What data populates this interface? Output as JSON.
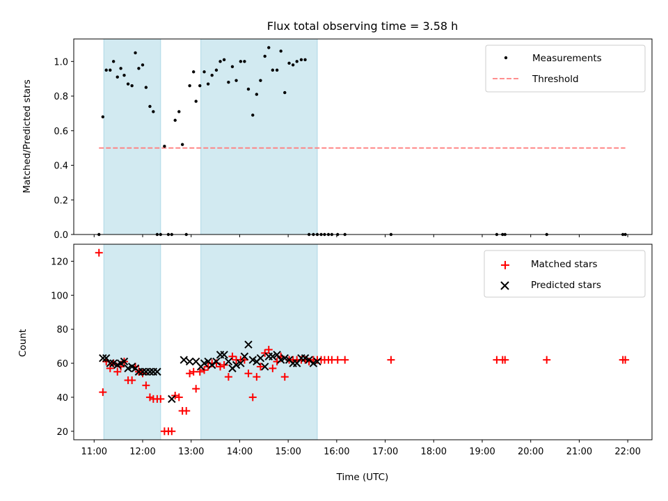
{
  "chart_data": [
    {
      "type": "scatter",
      "title": "Flux total observing time = 3.58 h",
      "ylabel": "Matched/Predicted stars",
      "xlabel": "",
      "xlim": [
        10.58,
        22.5
      ],
      "ylim": [
        0,
        1.13
      ],
      "yticks": [
        0.0,
        0.2,
        0.4,
        0.6,
        0.8,
        1.0
      ],
      "ytick_labels": [
        "0.0",
        "0.2",
        "0.4",
        "0.6",
        "0.8",
        "1.0"
      ],
      "x_axis": "time (decimal hours UTC)",
      "xticks": [
        11,
        12,
        13,
        14,
        15,
        16,
        17,
        18,
        19,
        20,
        21,
        22
      ],
      "show_xtick_labels": false,
      "shaded_intervals": [
        [
          11.2,
          12.37
        ],
        [
          13.2,
          15.6
        ]
      ],
      "shade_color": "#add8e6",
      "grid": false,
      "legend_position": "top-right",
      "legend": [
        {
          "label": "Measurements",
          "marker": "dot",
          "color": "#000000"
        },
        {
          "label": "Threshold",
          "marker": "dashed-line",
          "color": "#ff7f7f"
        }
      ],
      "threshold": {
        "y": 0.5,
        "x_start": 11.1,
        "x_end": 21.95,
        "color": "#ff7f7f"
      },
      "series": [
        {
          "name": "Measurements",
          "color": "#000000",
          "x": [
            11.1,
            11.18,
            11.25,
            11.33,
            11.4,
            11.48,
            11.55,
            11.62,
            11.7,
            11.78,
            11.85,
            11.92,
            12.0,
            12.07,
            12.15,
            12.22,
            12.3,
            12.37,
            12.45,
            12.53,
            12.6,
            12.67,
            12.75,
            12.82,
            12.9,
            12.97,
            13.05,
            13.1,
            13.18,
            13.27,
            13.35,
            13.43,
            13.52,
            13.6,
            13.68,
            13.77,
            13.85,
            13.93,
            14.02,
            14.1,
            14.18,
            14.27,
            14.35,
            14.43,
            14.52,
            14.6,
            14.68,
            14.77,
            14.85,
            14.93,
            15.02,
            15.1,
            15.18,
            15.27,
            15.35,
            15.43,
            15.52,
            15.6,
            15.68,
            15.75,
            15.83,
            15.9,
            16.02,
            16.17,
            17.12,
            19.3,
            19.42,
            19.47,
            20.33,
            21.9,
            21.95
          ],
          "y": [
            0.0,
            0.68,
            0.95,
            0.95,
            1.0,
            0.91,
            0.96,
            0.92,
            0.87,
            0.86,
            1.05,
            0.96,
            0.98,
            0.85,
            0.74,
            0.71,
            0.0,
            0.0,
            0.51,
            0.0,
            0.0,
            0.66,
            0.71,
            0.52,
            0.0,
            0.86,
            0.94,
            0.77,
            0.86,
            0.94,
            0.87,
            0.92,
            0.95,
            1.0,
            1.01,
            0.88,
            0.97,
            0.89,
            1.0,
            1.0,
            0.84,
            0.69,
            0.81,
            0.89,
            1.03,
            1.08,
            0.95,
            0.95,
            1.06,
            0.82,
            0.99,
            0.98,
            1.0,
            1.01,
            1.01,
            0.0,
            0.0,
            0.0,
            0.0,
            0.0,
            0.0,
            0.0,
            0.0,
            0.0,
            0.0,
            0.0,
            0.0,
            0.0,
            0.0,
            0.0,
            0.0
          ]
        }
      ]
    },
    {
      "type": "scatter",
      "title": "",
      "ylabel": "Count",
      "xlabel": "Time (UTC)",
      "xlim": [
        10.58,
        22.5
      ],
      "ylim": [
        15,
        130
      ],
      "yticks": [
        20,
        40,
        60,
        80,
        100,
        120
      ],
      "ytick_labels": [
        "20",
        "40",
        "60",
        "80",
        "100",
        "120"
      ],
      "xticks": [
        11,
        12,
        13,
        14,
        15,
        16,
        17,
        18,
        19,
        20,
        21,
        22
      ],
      "xtick_labels": [
        "11:00",
        "12:00",
        "13:00",
        "14:00",
        "15:00",
        "16:00",
        "17:00",
        "18:00",
        "19:00",
        "20:00",
        "21:00",
        "22:00"
      ],
      "show_xtick_labels": true,
      "shaded_intervals": [
        [
          11.2,
          12.37
        ],
        [
          13.2,
          15.6
        ]
      ],
      "shade_color": "#add8e6",
      "grid": false,
      "legend_position": "top-right",
      "legend": [
        {
          "label": "Matched stars",
          "marker": "plus",
          "color": "#ff0000"
        },
        {
          "label": "Predicted stars",
          "marker": "cross",
          "color": "#000000"
        }
      ],
      "series": [
        {
          "name": "Matched stars",
          "color": "#ff0000",
          "marker": "plus",
          "x": [
            11.1,
            11.18,
            11.25,
            11.33,
            11.4,
            11.48,
            11.55,
            11.62,
            11.7,
            11.78,
            11.85,
            11.92,
            12.0,
            12.07,
            12.15,
            12.22,
            12.3,
            12.37,
            12.45,
            12.53,
            12.6,
            12.67,
            12.75,
            12.82,
            12.9,
            12.97,
            13.05,
            13.1,
            13.18,
            13.27,
            13.35,
            13.43,
            13.52,
            13.6,
            13.68,
            13.77,
            13.85,
            13.93,
            14.02,
            14.1,
            14.18,
            14.27,
            14.35,
            14.43,
            14.52,
            14.6,
            14.68,
            14.77,
            14.85,
            14.93,
            15.02,
            15.1,
            15.18,
            15.27,
            15.35,
            15.43,
            15.52,
            15.6,
            15.68,
            15.75,
            15.83,
            15.9,
            16.02,
            16.17,
            17.12,
            19.3,
            19.42,
            19.47,
            20.33,
            21.9,
            21.95
          ],
          "y": [
            125,
            43,
            61,
            57,
            60,
            55,
            58,
            61,
            50,
            50,
            58,
            55,
            54,
            47,
            40,
            39,
            39,
            39,
            20,
            20,
            20,
            41,
            40,
            32,
            32,
            54,
            55,
            45,
            55,
            56,
            58,
            60,
            60,
            58,
            59,
            52,
            64,
            62,
            62,
            62,
            54,
            40,
            52,
            58,
            66,
            68,
            57,
            61,
            64,
            52,
            62,
            62,
            62,
            62,
            62,
            61,
            62,
            62,
            62,
            62,
            62,
            62,
            62,
            62,
            62,
            62,
            62,
            62,
            62,
            62,
            62
          ]
        },
        {
          "name": "Predicted stars",
          "color": "#000000",
          "marker": "cross",
          "x": [
            11.18,
            11.25,
            11.33,
            11.4,
            11.48,
            11.55,
            11.62,
            11.7,
            11.78,
            11.85,
            11.92,
            12.0,
            12.07,
            12.15,
            12.22,
            12.3,
            12.6,
            12.85,
            12.97,
            13.1,
            13.2,
            13.27,
            13.35,
            13.43,
            13.52,
            13.6,
            13.68,
            13.77,
            13.85,
            13.93,
            14.02,
            14.1,
            14.18,
            14.27,
            14.35,
            14.43,
            14.52,
            14.6,
            14.68,
            14.77,
            14.85,
            14.93,
            15.02,
            15.1,
            15.18,
            15.27,
            15.35,
            15.43,
            15.52,
            15.6
          ],
          "y": [
            63,
            63,
            60,
            60,
            59,
            60,
            61,
            57,
            58,
            57,
            55,
            55,
            55,
            55,
            55,
            55,
            39,
            62,
            61,
            61,
            58,
            60,
            61,
            59,
            61,
            65,
            65,
            61,
            57,
            59,
            60,
            64,
            71,
            62,
            61,
            63,
            58,
            64,
            64,
            65,
            62,
            63,
            62,
            60,
            60,
            63,
            63,
            62,
            60,
            61
          ]
        }
      ]
    }
  ]
}
